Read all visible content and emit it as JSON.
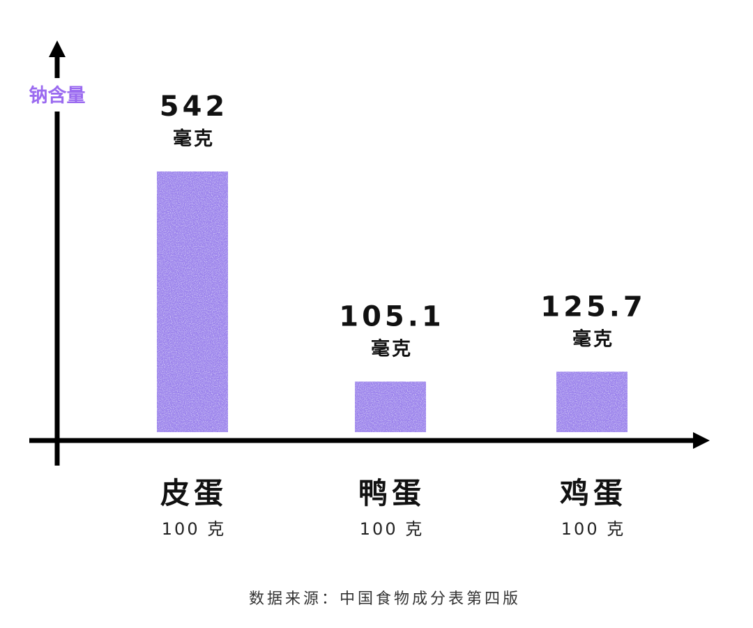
{
  "colors": {
    "bar": "#9b82ec",
    "bar_speckle": "#ffffff",
    "axis": "#000000",
    "ylabel": "#9b6bf0"
  },
  "chart_data": {
    "type": "bar",
    "categories": [
      "皮蛋",
      "鸭蛋",
      "鸡蛋"
    ],
    "category_sublabels": [
      "100 克",
      "100 克",
      "100 克"
    ],
    "values": [
      542,
      105.1,
      125.7
    ],
    "value_labels": [
      "542",
      "105.1",
      "125.7"
    ],
    "value_unit": "毫克",
    "ylabel": "钠含量",
    "xlabel": "",
    "ylim": [
      0,
      542
    ],
    "grid": false
  },
  "footer": {
    "source": "数据来源：中国食物成分表第四版"
  }
}
